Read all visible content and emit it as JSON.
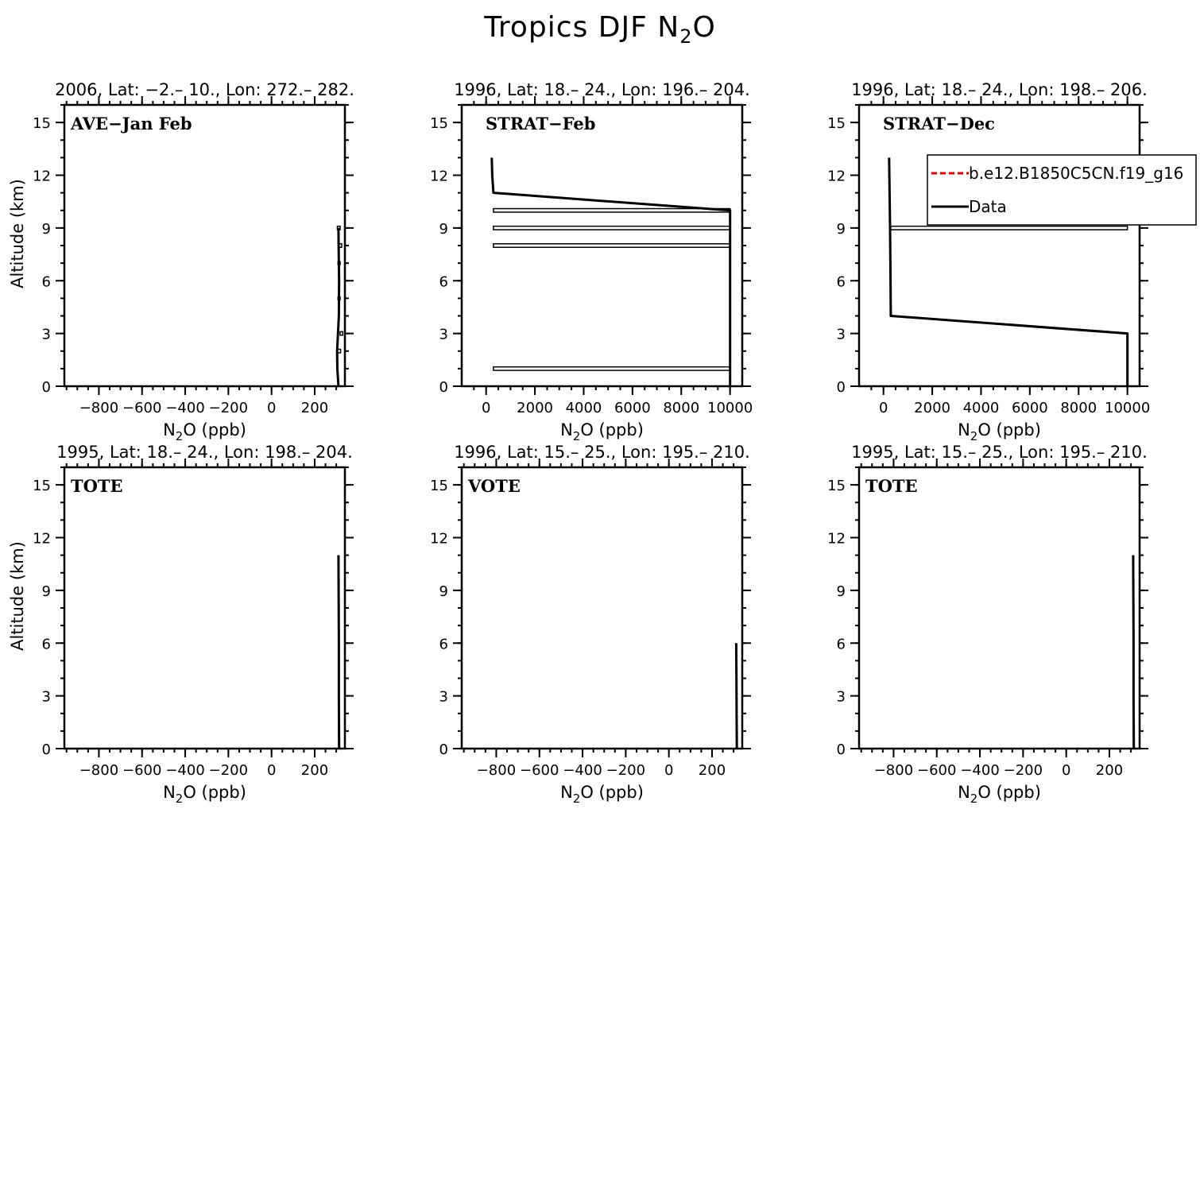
{
  "figure": {
    "title_main": "Tropics DJF N",
    "title_sub": "2",
    "title_tail": "O"
  },
  "legend": {
    "entries": [
      {
        "label": "b.e12.B1850C5CN.f19_g16",
        "color": "#e00000",
        "dash": true
      },
      {
        "label": "Data",
        "color": "#000000",
        "dash": false
      }
    ]
  },
  "chart_data": [
    {
      "type": "line",
      "title": "2006, Lat: −2.– 10., Lon: 272.– 282.",
      "label": "AVE−Jan Feb",
      "xlabel": {
        "main": "N",
        "sub": "2",
        "tail": "O (ppb)"
      },
      "ylabel": "Altitude (km)",
      "xlim": [
        -960,
        340
      ],
      "ylim": [
        0,
        16
      ],
      "xticks": [
        -800,
        -600,
        -400,
        -200,
        0,
        200
      ],
      "xtick_labels": [
        "−800",
        "−600",
        "−400",
        "−200",
        "0",
        "200"
      ],
      "xminor": 50,
      "yticks": [
        0,
        3,
        6,
        9,
        12,
        15
      ],
      "ytick_labels": [
        "0",
        "3",
        "6",
        "9",
        "12",
        "15"
      ],
      "yminor": 1,
      "series": [
        {
          "name": "Data",
          "color": "#000000",
          "x": [
            310,
            305,
            304,
            308,
            312,
            313,
            311,
            310
          ],
          "y": [
            0,
            1,
            2,
            3,
            4,
            6,
            8,
            9
          ]
        }
      ],
      "boxes": [
        {
          "x": [
            305,
            320
          ],
          "y": 2,
          "h": 0.2
        },
        {
          "x": [
            318,
            330
          ],
          "y": 3,
          "h": 0.2
        },
        {
          "x": [
            308,
            318
          ],
          "y": 5,
          "h": 0.15
        },
        {
          "x": [
            308,
            318
          ],
          "y": 7,
          "h": 0.15
        },
        {
          "x": [
            312,
            325
          ],
          "y": 8,
          "h": 0.2
        },
        {
          "x": [
            305,
            318
          ],
          "y": 9,
          "h": 0.2
        }
      ],
      "legend": false
    },
    {
      "type": "line",
      "title": "1996, Lat: 18.– 24., Lon: 196.– 204.",
      "label": "STRAT−Feb",
      "xlabel": {
        "main": "N",
        "sub": "2",
        "tail": "O (ppb)"
      },
      "ylabel": "",
      "xlim": [
        -1000,
        10500
      ],
      "ylim": [
        0,
        16
      ],
      "xticks": [
        0,
        2000,
        4000,
        6000,
        8000,
        10000
      ],
      "xtick_labels": [
        "0",
        "2000",
        "4000",
        "6000",
        "8000",
        "10000"
      ],
      "xminor": 500,
      "yticks": [
        0,
        3,
        6,
        9,
        12,
        15
      ],
      "ytick_labels": [
        "0",
        "3",
        "6",
        "9",
        "12",
        "15"
      ],
      "yminor": 1,
      "series": [
        {
          "name": "Data",
          "color": "#000000",
          "x": [
            10000,
            10000,
            300,
            250,
            230
          ],
          "y": [
            0,
            10,
            11,
            12,
            13
          ]
        }
      ],
      "boxes": [
        {
          "x": [
            300,
            10000
          ],
          "y": 1,
          "h": 0.2
        },
        {
          "x": [
            300,
            10000
          ],
          "y": 8,
          "h": 0.2
        },
        {
          "x": [
            300,
            10000
          ],
          "y": 9,
          "h": 0.2
        },
        {
          "x": [
            300,
            10000
          ],
          "y": 10,
          "h": 0.2
        }
      ],
      "legend": false
    },
    {
      "type": "line",
      "title": "1996, Lat: 18.– 24., Lon: 198.– 206.",
      "label": "STRAT−Dec",
      "xlabel": {
        "main": "N",
        "sub": "2",
        "tail": "O (ppb)"
      },
      "ylabel": "",
      "xlim": [
        -1000,
        10500
      ],
      "ylim": [
        0,
        16
      ],
      "xticks": [
        0,
        2000,
        4000,
        6000,
        8000,
        10000
      ],
      "xtick_labels": [
        "0",
        "2000",
        "4000",
        "6000",
        "8000",
        "10000"
      ],
      "xminor": 500,
      "yticks": [
        0,
        3,
        6,
        9,
        12,
        15
      ],
      "ytick_labels": [
        "0",
        "3",
        "6",
        "9",
        "12",
        "15"
      ],
      "yminor": 1,
      "series": [
        {
          "name": "Data",
          "color": "#000000",
          "x": [
            10000,
            10000,
            300,
            290,
            270,
            250,
            230
          ],
          "y": [
            0,
            3,
            4,
            6,
            9,
            11,
            13
          ]
        }
      ],
      "boxes": [
        {
          "x": [
            300,
            10000
          ],
          "y": 9,
          "h": 0.2
        }
      ],
      "legend": true
    },
    {
      "type": "line",
      "title": "1995, Lat: 18.– 24., Lon: 198.– 204.",
      "label": "TOTE",
      "xlabel": {
        "main": "N",
        "sub": "2",
        "tail": "O (ppb)"
      },
      "ylabel": "Altitude (km)",
      "xlim": [
        -960,
        340
      ],
      "ylim": [
        0,
        16
      ],
      "xticks": [
        -800,
        -600,
        -400,
        -200,
        0,
        200
      ],
      "xtick_labels": [
        "−800",
        "−600",
        "−400",
        "−200",
        "0",
        "200"
      ],
      "xminor": 50,
      "yticks": [
        0,
        3,
        6,
        9,
        12,
        15
      ],
      "ytick_labels": [
        "0",
        "3",
        "6",
        "9",
        "12",
        "15"
      ],
      "yminor": 1,
      "series": [
        {
          "name": "Data",
          "color": "#000000",
          "x": [
            313,
            312,
            312,
            311,
            310
          ],
          "y": [
            0,
            3,
            6,
            9,
            11
          ]
        }
      ],
      "boxes": [],
      "legend": false
    },
    {
      "type": "line",
      "title": "1996, Lat: 15.– 25., Lon: 195.– 210.",
      "label": "VOTE",
      "xlabel": {
        "main": "N",
        "sub": "2",
        "tail": "O (ppb)"
      },
      "ylabel": "",
      "xlim": [
        -960,
        340
      ],
      "ylim": [
        0,
        16
      ],
      "xticks": [
        -800,
        -600,
        -400,
        -200,
        0,
        200
      ],
      "xtick_labels": [
        "−800",
        "−600",
        "−400",
        "−200",
        "0",
        "200"
      ],
      "xminor": 50,
      "yticks": [
        0,
        3,
        6,
        9,
        12,
        15
      ],
      "ytick_labels": [
        "0",
        "3",
        "6",
        "9",
        "12",
        "15"
      ],
      "yminor": 1,
      "series": [
        {
          "name": "Data",
          "color": "#000000",
          "x": [
            315,
            314,
            313,
            312
          ],
          "y": [
            0,
            2,
            4,
            6
          ]
        }
      ],
      "boxes": [],
      "legend": false
    },
    {
      "type": "line",
      "title": "1995, Lat: 15.– 25., Lon: 195.– 210.",
      "label": "TOTE",
      "xlabel": {
        "main": "N",
        "sub": "2",
        "tail": "O (ppb)"
      },
      "ylabel": "",
      "xlim": [
        -960,
        340
      ],
      "ylim": [
        0,
        16
      ],
      "xticks": [
        -800,
        -600,
        -400,
        -200,
        0,
        200
      ],
      "xtick_labels": [
        "−800",
        "−600",
        "−400",
        "−200",
        "0",
        "200"
      ],
      "xminor": 50,
      "yticks": [
        0,
        3,
        6,
        9,
        12,
        15
      ],
      "ytick_labels": [
        "0",
        "3",
        "6",
        "9",
        "12",
        "15"
      ],
      "yminor": 1,
      "series": [
        {
          "name": "Data",
          "color": "#000000",
          "x": [
            313,
            312,
            312,
            311,
            310
          ],
          "y": [
            0,
            3,
            6,
            9,
            11
          ]
        }
      ],
      "boxes": [],
      "legend": false
    }
  ]
}
